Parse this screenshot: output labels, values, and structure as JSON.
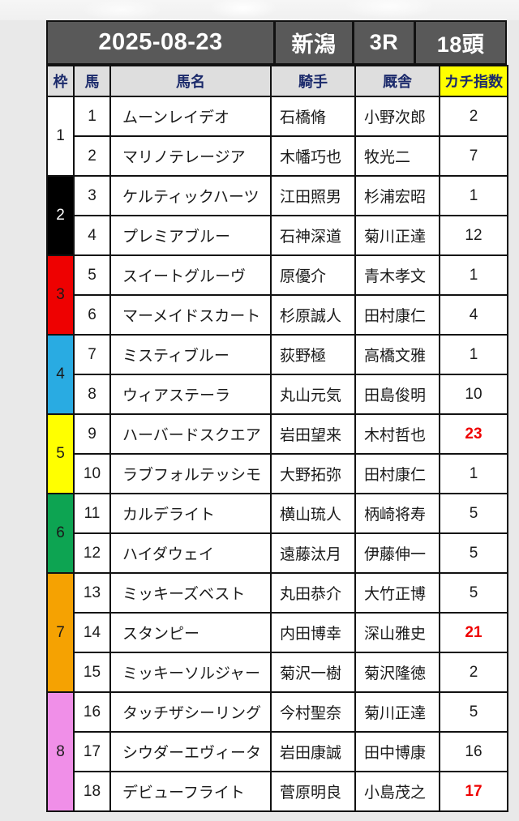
{
  "header": {
    "date": "2025-08-23",
    "track": "新潟",
    "race": "3R",
    "heads": "18頭"
  },
  "columns": {
    "frame": "枠",
    "horse": "馬",
    "name": "馬名",
    "jockey": "騎手",
    "stable": "厩舎",
    "kachi": "カチ指数"
  },
  "colors": {
    "header_bg": "#595959",
    "column_header_bg": "#dedede",
    "column_header_text": "#1b2a6b",
    "kachi_header_bg": "#ffff00",
    "kachi_cell_bg": "#fafac8",
    "hot_value_red": "#ee0000",
    "border": "#111111"
  },
  "frames": [
    {
      "no": "1",
      "span": 2,
      "bg": "#ffffff",
      "fg": "#1a1a1a"
    },
    {
      "no": "2",
      "span": 2,
      "bg": "#000000",
      "fg": "#ffffff"
    },
    {
      "no": "3",
      "span": 2,
      "bg": "#ee0101",
      "fg": "#1a1a1a"
    },
    {
      "no": "4",
      "span": 2,
      "bg": "#29abe2",
      "fg": "#1a1a1a"
    },
    {
      "no": "5",
      "span": 2,
      "bg": "#ffff00",
      "fg": "#1a1a1a"
    },
    {
      "no": "6",
      "span": 2,
      "bg": "#0da452",
      "fg": "#1a1a1a"
    },
    {
      "no": "7",
      "span": 3,
      "bg": "#f5a202",
      "fg": "#1a1a1a"
    },
    {
      "no": "8",
      "span": 3,
      "bg": "#f08fe8",
      "fg": "#1a1a1a"
    }
  ],
  "horses": [
    {
      "no": "1",
      "name": "ムーンレイデオ",
      "jockey": "石橋脩",
      "stable": "小野次郎",
      "kachi": "2",
      "hot": false
    },
    {
      "no": "2",
      "name": "マリノテレージア",
      "jockey": "木幡巧也",
      "stable": "牧光二",
      "kachi": "7",
      "hot": false
    },
    {
      "no": "3",
      "name": "ケルティックハーツ",
      "jockey": "江田照男",
      "stable": "杉浦宏昭",
      "kachi": "1",
      "hot": false
    },
    {
      "no": "4",
      "name": "プレミアブルー",
      "jockey": "石神深道",
      "stable": "菊川正達",
      "kachi": "12",
      "hot": false
    },
    {
      "no": "5",
      "name": "スイートグルーヴ",
      "jockey": "原優介",
      "stable": "青木孝文",
      "kachi": "1",
      "hot": false
    },
    {
      "no": "6",
      "name": "マーメイドスカート",
      "jockey": "杉原誠人",
      "stable": "田村康仁",
      "kachi": "4",
      "hot": false
    },
    {
      "no": "7",
      "name": "ミスティブルー",
      "jockey": "荻野極",
      "stable": "高橋文雅",
      "kachi": "1",
      "hot": false
    },
    {
      "no": "8",
      "name": "ウィアステーラ",
      "jockey": "丸山元気",
      "stable": "田島俊明",
      "kachi": "10",
      "hot": false
    },
    {
      "no": "9",
      "name": "ハーバードスクエア",
      "jockey": "岩田望来",
      "stable": "木村哲也",
      "kachi": "23",
      "hot": true
    },
    {
      "no": "10",
      "name": "ラブフォルテッシモ",
      "jockey": "大野拓弥",
      "stable": "田村康仁",
      "kachi": "1",
      "hot": false
    },
    {
      "no": "11",
      "name": "カルデライト",
      "jockey": "横山琉人",
      "stable": "柄崎将寿",
      "kachi": "5",
      "hot": false
    },
    {
      "no": "12",
      "name": "ハイダウェイ",
      "jockey": "遠藤汰月",
      "stable": "伊藤伸一",
      "kachi": "5",
      "hot": false
    },
    {
      "no": "13",
      "name": "ミッキーズベスト",
      "jockey": "丸田恭介",
      "stable": "大竹正博",
      "kachi": "5",
      "hot": false
    },
    {
      "no": "14",
      "name": "スタンピー",
      "jockey": "内田博幸",
      "stable": "深山雅史",
      "kachi": "21",
      "hot": true
    },
    {
      "no": "15",
      "name": "ミッキーソルジャー",
      "jockey": "菊沢一樹",
      "stable": "菊沢隆徳",
      "kachi": "2",
      "hot": false
    },
    {
      "no": "16",
      "name": "タッチザシーリング",
      "jockey": "今村聖奈",
      "stable": "菊川正達",
      "kachi": "5",
      "hot": false
    },
    {
      "no": "17",
      "name": "シウダーエヴィータ",
      "jockey": "岩田康誠",
      "stable": "田中博康",
      "kachi": "16",
      "hot": false
    },
    {
      "no": "18",
      "name": "デビューフライト",
      "jockey": "菅原明良",
      "stable": "小島茂之",
      "kachi": "17",
      "hot": true
    }
  ]
}
